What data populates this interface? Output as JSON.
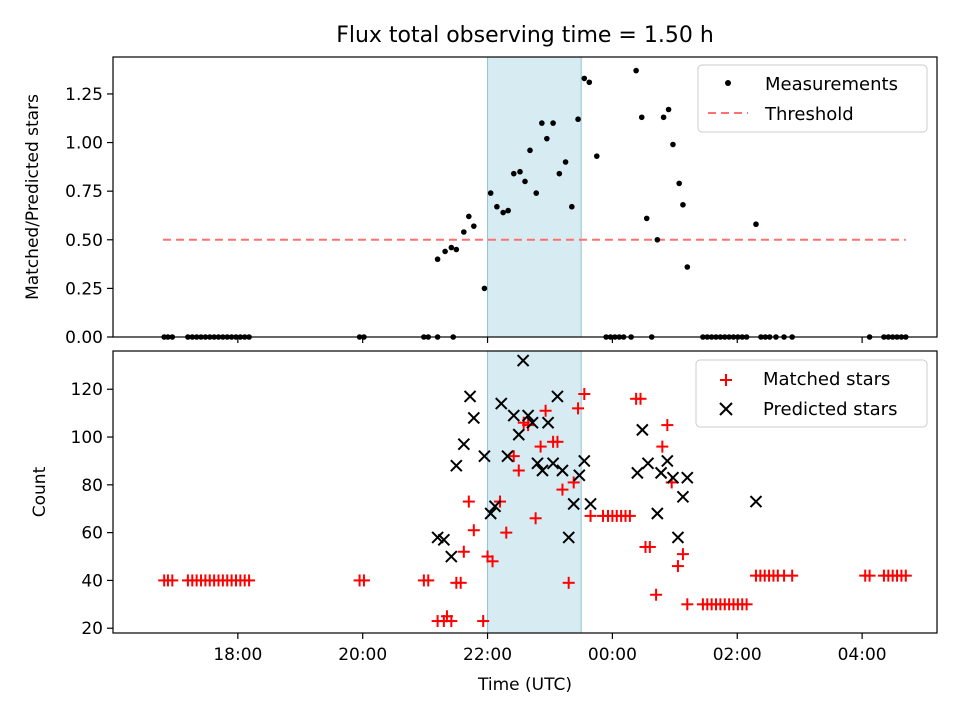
{
  "chart_data": [
    {
      "type": "scatter",
      "title": "Flux total observing time = 1.50 h",
      "xlabel": "",
      "ylabel": "Matched/Predicted stars",
      "ylim": [
        0,
        1.44
      ],
      "yticks": [
        0,
        0.25,
        0.5,
        0.75,
        1.0,
        1.25
      ],
      "ytick_labels": [
        "0.00",
        "0.25",
        "0.50",
        "0.75",
        "1.00",
        "1.25"
      ],
      "highlight_span_hours": [
        22.0,
        23.5
      ],
      "legend": {
        "position": "top-right",
        "entries": [
          "Measurements",
          "Threshold"
        ]
      },
      "threshold": {
        "name": "Threshold",
        "y": 0.5,
        "x_range": [
          16.8,
          28.7
        ],
        "color": "#ff7070"
      },
      "series": [
        {
          "name": "Measurements",
          "color": "#000000",
          "points": [
            [
              16.82,
              0
            ],
            [
              16.88,
              0
            ],
            [
              16.95,
              0
            ],
            [
              17.2,
              0
            ],
            [
              17.27,
              0
            ],
            [
              17.34,
              0
            ],
            [
              17.41,
              0
            ],
            [
              17.48,
              0
            ],
            [
              17.55,
              0
            ],
            [
              17.62,
              0
            ],
            [
              17.69,
              0
            ],
            [
              17.76,
              0
            ],
            [
              17.83,
              0
            ],
            [
              17.9,
              0
            ],
            [
              17.97,
              0
            ],
            [
              18.04,
              0
            ],
            [
              18.11,
              0
            ],
            [
              18.18,
              0
            ],
            [
              19.95,
              0
            ],
            [
              20.02,
              0
            ],
            [
              20.98,
              0
            ],
            [
              21.05,
              0
            ],
            [
              21.2,
              0
            ],
            [
              21.45,
              0
            ],
            [
              21.2,
              0.4
            ],
            [
              21.32,
              0.44
            ],
            [
              21.42,
              0.46
            ],
            [
              21.5,
              0.45
            ],
            [
              21.62,
              0.54
            ],
            [
              21.7,
              0.62
            ],
            [
              21.78,
              0.57
            ],
            [
              21.95,
              0.25
            ],
            [
              22.05,
              0.74
            ],
            [
              22.15,
              0.67
            ],
            [
              22.25,
              0.64
            ],
            [
              22.33,
              0.65
            ],
            [
              22.42,
              0.84
            ],
            [
              22.52,
              0.85
            ],
            [
              22.6,
              0.8
            ],
            [
              22.68,
              0.96
            ],
            [
              22.78,
              0.74
            ],
            [
              22.87,
              1.1
            ],
            [
              22.95,
              1.02
            ],
            [
              23.05,
              1.1
            ],
            [
              23.15,
              0.84
            ],
            [
              23.25,
              0.9
            ],
            [
              23.35,
              0.67
            ],
            [
              23.45,
              1.12
            ],
            [
              23.55,
              1.33
            ],
            [
              23.63,
              1.31
            ],
            [
              23.75,
              0.93
            ],
            [
              23.9,
              0
            ],
            [
              23.97,
              0
            ],
            [
              24.04,
              0
            ],
            [
              24.11,
              0
            ],
            [
              24.18,
              0
            ],
            [
              24.3,
              0
            ],
            [
              24.63,
              0
            ],
            [
              24.38,
              1.37
            ],
            [
              24.47,
              1.13
            ],
            [
              24.55,
              0.61
            ],
            [
              24.72,
              0.5
            ],
            [
              24.82,
              1.13
            ],
            [
              24.9,
              1.17
            ],
            [
              24.97,
              0.99
            ],
            [
              25.07,
              0.79
            ],
            [
              25.13,
              0.68
            ],
            [
              25.2,
              0.36
            ],
            [
              25.45,
              0
            ],
            [
              25.52,
              0
            ],
            [
              25.59,
              0
            ],
            [
              25.66,
              0
            ],
            [
              25.73,
              0
            ],
            [
              25.8,
              0
            ],
            [
              25.87,
              0
            ],
            [
              25.94,
              0
            ],
            [
              26.01,
              0
            ],
            [
              26.08,
              0
            ],
            [
              26.15,
              0
            ],
            [
              26.3,
              0.58
            ],
            [
              26.38,
              0
            ],
            [
              26.45,
              0
            ],
            [
              26.52,
              0
            ],
            [
              26.62,
              0
            ],
            [
              26.75,
              0
            ],
            [
              26.88,
              0
            ],
            [
              28.12,
              0
            ],
            [
              28.35,
              0
            ],
            [
              28.42,
              0
            ],
            [
              28.49,
              0
            ],
            [
              28.56,
              0
            ],
            [
              28.63,
              0
            ],
            [
              28.7,
              0
            ]
          ]
        }
      ]
    },
    {
      "type": "scatter",
      "title": "",
      "xlabel": "Time (UTC)",
      "ylabel": "Count",
      "ylim": [
        18,
        136
      ],
      "xlim": [
        16.0,
        29.2
      ],
      "xticks": [
        18,
        20,
        22,
        24,
        26,
        28
      ],
      "xtick_labels": [
        "18:00",
        "20:00",
        "22:00",
        "00:00",
        "02:00",
        "04:00"
      ],
      "yticks": [
        20,
        40,
        60,
        80,
        100,
        120
      ],
      "ytick_labels": [
        "20",
        "40",
        "60",
        "80",
        "100",
        "120"
      ],
      "highlight_span_hours": [
        22.0,
        23.5
      ],
      "legend": {
        "position": "top-right",
        "entries": [
          "Matched stars",
          "Predicted stars"
        ]
      },
      "series": [
        {
          "name": "Matched stars",
          "marker": "+",
          "color": "#ff0000",
          "points": [
            [
              16.82,
              40
            ],
            [
              16.88,
              40
            ],
            [
              16.95,
              40
            ],
            [
              17.2,
              40
            ],
            [
              17.27,
              40
            ],
            [
              17.34,
              40
            ],
            [
              17.41,
              40
            ],
            [
              17.48,
              40
            ],
            [
              17.55,
              40
            ],
            [
              17.62,
              40
            ],
            [
              17.69,
              40
            ],
            [
              17.76,
              40
            ],
            [
              17.83,
              40
            ],
            [
              17.9,
              40
            ],
            [
              17.97,
              40
            ],
            [
              18.04,
              40
            ],
            [
              18.11,
              40
            ],
            [
              18.18,
              40
            ],
            [
              19.95,
              40
            ],
            [
              20.02,
              40
            ],
            [
              20.98,
              40
            ],
            [
              21.05,
              40
            ],
            [
              21.2,
              23
            ],
            [
              21.3,
              23
            ],
            [
              21.35,
              25
            ],
            [
              21.42,
              23
            ],
            [
              21.5,
              39
            ],
            [
              21.57,
              39
            ],
            [
              21.62,
              52
            ],
            [
              21.7,
              73
            ],
            [
              21.78,
              61
            ],
            [
              21.93,
              23
            ],
            [
              22.0,
              50
            ],
            [
              22.08,
              48
            ],
            [
              22.2,
              73
            ],
            [
              22.3,
              60
            ],
            [
              22.42,
              92
            ],
            [
              22.5,
              86
            ],
            [
              22.58,
              106
            ],
            [
              22.65,
              105
            ],
            [
              22.77,
              66
            ],
            [
              22.85,
              96
            ],
            [
              22.93,
              111
            ],
            [
              23.05,
              98
            ],
            [
              23.12,
              98
            ],
            [
              23.2,
              78
            ],
            [
              23.3,
              39
            ],
            [
              23.38,
              81
            ],
            [
              23.45,
              112
            ],
            [
              23.55,
              118
            ],
            [
              23.65,
              67
            ],
            [
              23.85,
              67
            ],
            [
              23.93,
              67
            ],
            [
              24.0,
              67
            ],
            [
              24.07,
              67
            ],
            [
              24.14,
              67
            ],
            [
              24.21,
              67
            ],
            [
              24.28,
              67
            ],
            [
              24.38,
              116
            ],
            [
              24.45,
              116
            ],
            [
              24.53,
              54
            ],
            [
              24.6,
              54
            ],
            [
              24.7,
              34
            ],
            [
              24.8,
              96
            ],
            [
              24.88,
              105
            ],
            [
              24.95,
              81
            ],
            [
              25.05,
              46
            ],
            [
              25.13,
              51
            ],
            [
              25.2,
              30
            ],
            [
              25.45,
              30
            ],
            [
              25.52,
              30
            ],
            [
              25.59,
              30
            ],
            [
              25.66,
              30
            ],
            [
              25.73,
              30
            ],
            [
              25.8,
              30
            ],
            [
              25.87,
              30
            ],
            [
              25.94,
              30
            ],
            [
              26.01,
              30
            ],
            [
              26.08,
              30
            ],
            [
              26.15,
              30
            ],
            [
              26.3,
              42
            ],
            [
              26.37,
              42
            ],
            [
              26.44,
              42
            ],
            [
              26.51,
              42
            ],
            [
              26.58,
              42
            ],
            [
              26.65,
              42
            ],
            [
              26.75,
              42
            ],
            [
              26.88,
              42
            ],
            [
              28.05,
              42
            ],
            [
              28.12,
              42
            ],
            [
              28.35,
              42
            ],
            [
              28.42,
              42
            ],
            [
              28.49,
              42
            ],
            [
              28.56,
              42
            ],
            [
              28.63,
              42
            ],
            [
              28.7,
              42
            ]
          ]
        },
        {
          "name": "Predicted stars",
          "marker": "x",
          "color": "#000000",
          "points": [
            [
              21.2,
              58
            ],
            [
              21.3,
              57
            ],
            [
              21.42,
              50
            ],
            [
              21.5,
              88
            ],
            [
              21.62,
              97
            ],
            [
              21.72,
              117
            ],
            [
              21.78,
              108
            ],
            [
              21.95,
              92
            ],
            [
              22.05,
              68
            ],
            [
              22.12,
              71
            ],
            [
              22.22,
              114
            ],
            [
              22.32,
              92
            ],
            [
              22.42,
              109
            ],
            [
              22.5,
              101
            ],
            [
              22.57,
              132
            ],
            [
              22.65,
              109
            ],
            [
              22.72,
              106
            ],
            [
              22.8,
              89
            ],
            [
              22.88,
              86
            ],
            [
              22.97,
              106
            ],
            [
              23.05,
              89
            ],
            [
              23.12,
              117
            ],
            [
              23.2,
              86
            ],
            [
              23.3,
              58
            ],
            [
              23.38,
              72
            ],
            [
              23.47,
              84
            ],
            [
              23.55,
              90
            ],
            [
              23.65,
              72
            ],
            [
              24.4,
              85
            ],
            [
              24.48,
              103
            ],
            [
              24.57,
              89
            ],
            [
              24.72,
              68
            ],
            [
              24.78,
              85
            ],
            [
              24.88,
              90
            ],
            [
              24.97,
              83
            ],
            [
              25.05,
              58
            ],
            [
              25.13,
              75
            ],
            [
              25.2,
              83
            ],
            [
              26.3,
              73
            ]
          ]
        }
      ]
    }
  ]
}
